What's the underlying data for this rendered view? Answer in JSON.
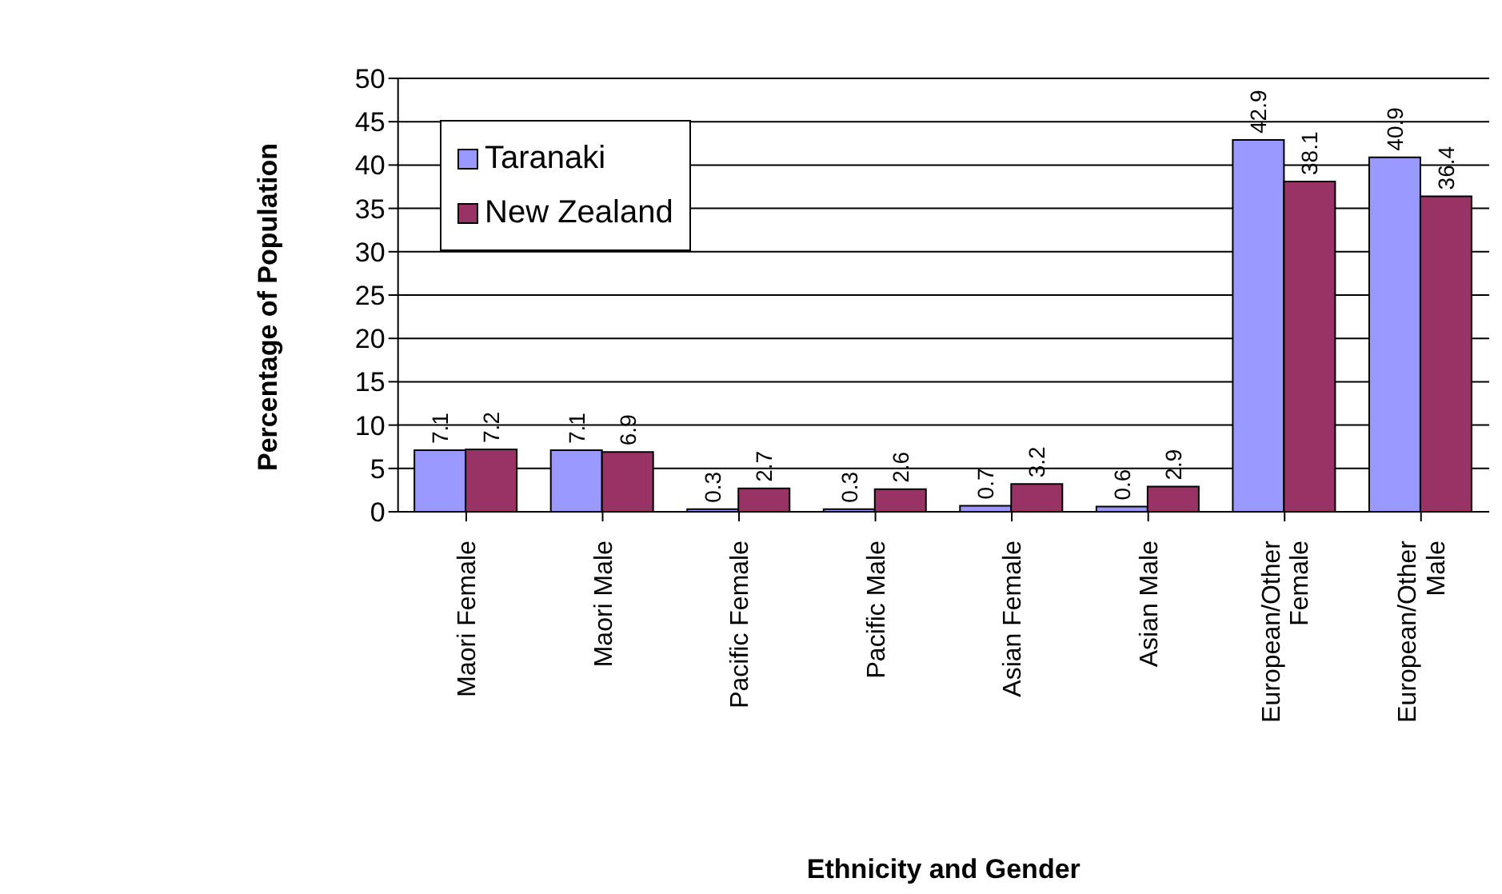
{
  "chart_data": {
    "type": "bar",
    "xlabel": "Ethnicity and Gender",
    "ylabel": "Percentage of Population",
    "categories": [
      "Maori Female",
      "Maori Male",
      "Pacific Female",
      "Pacific Male",
      "Asian Female",
      "Asian Male",
      "European/Other Female",
      "European/Other Male"
    ],
    "series": [
      {
        "name": "Taranaki",
        "color": "#9999ff",
        "values": [
          7.1,
          7.1,
          0.3,
          0.3,
          0.7,
          0.6,
          42.9,
          40.9
        ]
      },
      {
        "name": "New Zealand",
        "color": "#993366",
        "values": [
          7.2,
          6.9,
          2.7,
          2.6,
          3.2,
          2.9,
          38.1,
          36.4
        ]
      }
    ],
    "ylim": [
      0,
      50
    ],
    "yticks": [
      0,
      5,
      10,
      15,
      20,
      25,
      30,
      35,
      40,
      45,
      50
    ],
    "grid": "y",
    "legend": "top left",
    "data_labels": true
  }
}
